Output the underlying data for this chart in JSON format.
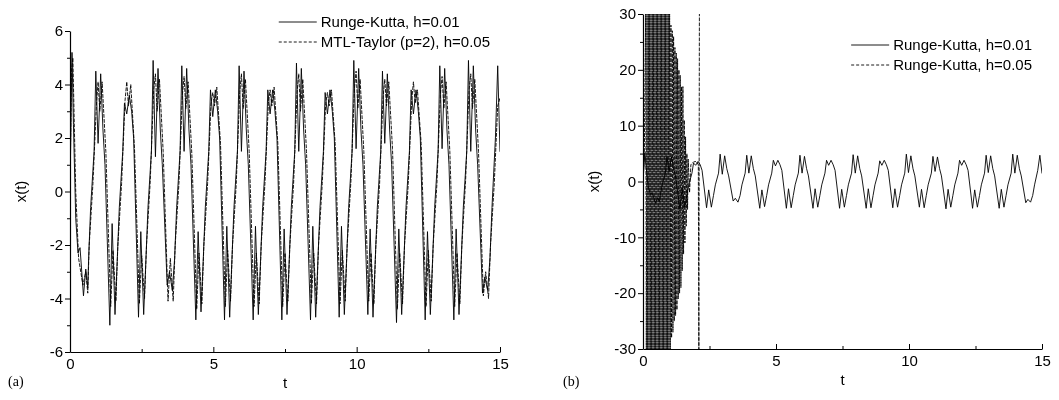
{
  "chart_data": [
    {
      "type": "line",
      "xlabel": "t",
      "ylabel": "x(t)",
      "annotations": [
        "(a)"
      ],
      "xlim": [
        0,
        15
      ],
      "ylim": [
        -6,
        6
      ],
      "xticks": [
        0,
        {
          "value": 2.5,
          "label": null
        },
        5,
        {
          "value": 7.5,
          "label": null
        },
        10,
        {
          "value": 12.5,
          "label": null
        },
        15
      ],
      "yticks": [
        -6,
        {
          "value": -5,
          "label": null
        },
        -4,
        {
          "value": -3,
          "label": null
        },
        -2,
        {
          "value": -1,
          "label": null
        },
        0,
        {
          "value": 1,
          "label": null
        },
        2,
        {
          "value": 3,
          "label": null
        },
        4,
        {
          "value": 5,
          "label": null
        },
        6
      ],
      "grid": false,
      "legend": "top right",
      "marker": "none",
      "series": [
        {
          "name": "Runge-Kutta, h=0.01",
          "color": "#000000",
          "line_style": "solid",
          "x": [
            0,
            0.04,
            0.07,
            0.12,
            0.2,
            0.28,
            0.35,
            0.47,
            0.55,
            0.62,
            0.65,
            0.72,
            0.84,
            0.9,
            0.98,
            1.07,
            1.15,
            1.22,
            1.39,
            1.47,
            1.57,
            1.65,
            1.72,
            1.84,
            1.9,
            1.98,
            2.07,
            2.15,
            2.22,
            2.39,
            2.47,
            2.57,
            2.65,
            2.72,
            2.84,
            2.9,
            2.98,
            3.07,
            3.15,
            3.22,
            3.39,
            3.47,
            3.57,
            3.65,
            3.72,
            3.84,
            3.9,
            3.98,
            4.07,
            4.15,
            4.22,
            4.39,
            4.47,
            4.57,
            4.65,
            4.72,
            4.84,
            4.9,
            4.98,
            5.07,
            5.15,
            5.22,
            5.39,
            5.47,
            5.57,
            5.65,
            5.72,
            5.84,
            5.9,
            5.98,
            6.07,
            6.15,
            6.22,
            6.39,
            6.47,
            6.57,
            6.65,
            6.72,
            6.84,
            6.9,
            6.98,
            7.07,
            7.15,
            7.22,
            7.39,
            7.47,
            7.57,
            7.65,
            7.72,
            7.84,
            7.9,
            7.98,
            8.07,
            8.15,
            8.22,
            8.39,
            8.47,
            8.57,
            8.65,
            8.72,
            8.84,
            8.9,
            8.98,
            9.07,
            9.15,
            9.22,
            9.39,
            9.47,
            9.57,
            9.65,
            9.72,
            9.84,
            9.9,
            9.98,
            10.07,
            10.15,
            10.22,
            10.39,
            10.47,
            10.57,
            10.65,
            10.72,
            10.84,
            10.9,
            10.98,
            11.07,
            11.15,
            11.22,
            11.39,
            11.47,
            11.57,
            11.65,
            11.72,
            11.84,
            11.9,
            11.98,
            12.07,
            12.15,
            12.22,
            12.39,
            12.47,
            12.57,
            12.65,
            12.72,
            12.84,
            12.9,
            12.98,
            13.07,
            13.15,
            13.22,
            13.39,
            13.47,
            13.57,
            13.65,
            13.72,
            13.84,
            13.9,
            13.98,
            14.07,
            14.15,
            14.22,
            14.39,
            14.47,
            14.57,
            14.65,
            14.72,
            14.84,
            14.92,
            15
          ],
          "values": [
            0,
            3,
            5.2,
            2.5,
            -1,
            -2.3,
            -2.1,
            -3.9,
            -2.9,
            -3.6,
            -2.5,
            -0.6,
            1.5,
            4.5,
            1.8,
            4.4,
            2.3,
            1,
            -5,
            -1.2,
            -4.6,
            -2.5,
            -0.6,
            1.5,
            3.3,
            2.9,
            3.6,
            3,
            2,
            -4.7,
            -1.5,
            -4.6,
            -2.5,
            -0.6,
            1.5,
            4.9,
            1.3,
            4.6,
            2.3,
            1,
            -3.5,
            -3,
            -3.7,
            -2.5,
            -0.6,
            1.5,
            4.7,
            1.5,
            4.6,
            2.3,
            1,
            -4.8,
            -1.5,
            -4.5,
            -2.5,
            -0.6,
            1.5,
            3.8,
            2.8,
            3.8,
            3,
            2,
            -4.8,
            -1.3,
            -4.7,
            -2.5,
            -0.6,
            1.5,
            4.7,
            1.5,
            4.5,
            2.3,
            1,
            -4.8,
            -1.3,
            -4.6,
            -2.5,
            -0.6,
            1.5,
            3.8,
            2.9,
            3.8,
            3,
            2,
            -4.8,
            -1.4,
            -4.6,
            -2.5,
            -0.6,
            1.5,
            4.8,
            1.5,
            4.6,
            2.3,
            1,
            -4.8,
            -1.3,
            -4.7,
            -2.5,
            -0.6,
            1.5,
            3.7,
            2.9,
            3.8,
            3,
            2,
            -4.7,
            -1.3,
            -4.6,
            -2.5,
            -0.6,
            1.5,
            4.9,
            1.6,
            4.6,
            2.3,
            1,
            -4.6,
            -1.4,
            -4.7,
            -2.5,
            -0.6,
            1.5,
            4.5,
            1.8,
            4.4,
            2.3,
            1,
            -4.9,
            -1.4,
            -4.6,
            -2.5,
            -0.6,
            1.5,
            3.8,
            2.9,
            3.8,
            3,
            2,
            -4.8,
            -1.5,
            -4.6,
            -2.5,
            -0.6,
            1.5,
            4.7,
            1.6,
            4.6,
            2.3,
            1,
            -4.8,
            -1.4,
            -4.6,
            -2.5,
            -0.6,
            1.5,
            4.9,
            1.5,
            4.7,
            2.3,
            1,
            -3.8,
            -3.2,
            -3.7,
            -2.5,
            -0.6,
            2,
            4.7,
            1.5
          ]
        },
        {
          "name": "MTL-Taylor (p=2), h=0.05",
          "color": "#000000",
          "line_style": "dashed",
          "x": [
            0,
            0.05,
            0.1,
            0.2,
            0.3,
            0.45,
            0.55,
            0.62,
            0.67,
            0.8,
            0.92,
            0.98,
            1.04,
            1.12,
            1.25,
            1.42,
            1.5,
            1.6,
            1.67,
            1.8,
            1.92,
            1.98,
            2.04,
            2.12,
            2.25,
            2.42,
            2.5,
            2.6,
            2.67,
            2.8,
            2.92,
            2.98,
            3.04,
            3.12,
            3.25,
            3.42,
            3.5,
            3.6,
            3.67,
            3.8,
            3.92,
            3.98,
            4.04,
            4.12,
            4.25,
            4.42,
            4.5,
            4.6,
            4.67,
            4.8,
            4.92,
            4.98,
            5.04,
            5.12,
            5.25,
            5.42,
            5.5,
            5.6,
            5.67,
            5.8,
            5.92,
            5.98,
            6.04,
            6.12,
            6.25,
            6.42,
            6.5,
            6.6,
            6.67,
            6.8,
            6.92,
            6.98,
            7.04,
            7.12,
            7.25,
            7.42,
            7.5,
            7.6,
            7.67,
            7.8,
            7.92,
            7.98,
            8.04,
            8.12,
            8.25,
            8.42,
            8.5,
            8.6,
            8.67,
            8.8,
            8.92,
            8.98,
            9.04,
            9.12,
            9.25,
            9.42,
            9.5,
            9.6,
            9.67,
            9.8,
            9.92,
            9.98,
            10.04,
            10.12,
            10.25,
            10.42,
            10.5,
            10.6,
            10.67,
            10.8,
            10.92,
            10.98,
            11.04,
            11.12,
            11.25,
            11.42,
            11.5,
            11.6,
            11.67,
            11.8,
            11.92,
            11.98,
            12.04,
            12.12,
            12.25,
            12.42,
            12.5,
            12.6,
            12.67,
            12.8,
            12.92,
            12.98,
            13.04,
            13.12,
            13.25,
            13.42,
            13.5,
            13.6,
            13.67,
            13.8,
            13.92,
            13.98,
            14.04,
            14.12,
            14.25,
            14.42,
            14.5,
            14.6,
            14.67,
            14.8,
            14.92,
            15
          ],
          "values": [
            0,
            4.5,
            5,
            0,
            -2.5,
            -3.5,
            -3,
            -3.8,
            -2,
            0.3,
            3.2,
            4.1,
            3,
            4.1,
            1.5,
            -4.3,
            -2.2,
            -4.1,
            -2,
            0.3,
            3.4,
            4.1,
            3.2,
            4,
            1.6,
            -4.2,
            -2.4,
            -4,
            -2,
            0.4,
            3.8,
            4.4,
            3,
            4.2,
            1.5,
            -4.1,
            -2.5,
            -4.1,
            -2,
            0.3,
            3.6,
            4.3,
            3.1,
            4.1,
            1.4,
            -4.4,
            -2.3,
            -4.2,
            -2,
            0.3,
            3.3,
            3.7,
            3.2,
            3.9,
            1.8,
            -4.3,
            -2.2,
            -4.1,
            -2,
            0.3,
            3.7,
            4.4,
            3.1,
            4.2,
            1.5,
            -4.3,
            -2.3,
            -4.2,
            -2,
            0.3,
            3.3,
            3.8,
            3.2,
            3.9,
            1.8,
            -4.3,
            -2.3,
            -4.1,
            -2,
            0.3,
            3.7,
            4.4,
            3,
            4.2,
            1.5,
            -4.2,
            -2.3,
            -4.2,
            -2,
            0.3,
            3.3,
            3.7,
            3.2,
            3.8,
            1.8,
            -4.2,
            -2.2,
            -4.1,
            -2,
            0.4,
            3.8,
            4.5,
            3.1,
            4.2,
            1.5,
            -4.1,
            -2.3,
            -4.2,
            -2,
            0.3,
            3.5,
            4.2,
            3.2,
            4.1,
            1.6,
            -4.4,
            -2.3,
            -4.2,
            -2,
            0.3,
            3.4,
            4.1,
            3.3,
            3.8,
            1.8,
            -4.3,
            -2.2,
            -4.1,
            -2,
            0.3,
            3.6,
            4.3,
            3.1,
            4.1,
            1.5,
            -4.3,
            -2.3,
            -4.2,
            -2,
            0.4,
            3.8,
            4.4,
            3.1,
            4.2,
            1.5,
            -3.9,
            -3,
            -4,
            -2,
            0.3,
            3.2,
            3.5
          ]
        }
      ]
    },
    {
      "type": "line",
      "xlabel": "t",
      "ylabel": "x(t)",
      "annotations": [
        "(b)"
      ],
      "xlim": [
        0,
        15
      ],
      "ylim": [
        -30,
        30
      ],
      "xticks": [
        0,
        {
          "value": 2.5,
          "label": null
        },
        5,
        {
          "value": 7.5,
          "label": null
        },
        10,
        {
          "value": 12.5,
          "label": null
        },
        15
      ],
      "yticks": [
        -30,
        {
          "value": -25,
          "label": null
        },
        -20,
        {
          "value": -15,
          "label": null
        },
        -10,
        {
          "value": -5,
          "label": null
        },
        0,
        {
          "value": 5,
          "label": null
        },
        10,
        {
          "value": 15,
          "label": null
        },
        20,
        {
          "value": 25,
          "label": null
        },
        30
      ],
      "grid": false,
      "legend": "top right",
      "marker": "none",
      "series": [
        {
          "name": "Runge-Kutta, h=0.01",
          "color": "#000000",
          "line_style": "solid",
          "x": [
            0,
            0.04,
            0.07,
            0.12,
            0.2,
            0.28,
            0.35,
            0.47,
            0.55,
            0.62,
            0.65,
            0.72,
            0.84,
            0.9,
            0.98,
            1.07,
            1.15,
            1.22,
            1.39,
            1.47,
            1.57,
            1.65,
            1.72,
            1.84,
            1.9,
            1.98,
            2.07,
            2.15,
            2.22,
            2.39,
            2.47,
            2.57,
            2.65,
            2.72,
            2.84,
            2.9,
            2.98,
            3.07,
            3.15,
            3.22,
            3.39,
            3.47,
            3.57,
            3.65,
            3.72,
            3.84,
            3.9,
            3.98,
            4.07,
            4.15,
            4.22,
            4.39,
            4.47,
            4.57,
            4.65,
            4.72,
            4.84,
            4.9,
            4.98,
            5.07,
            5.15,
            5.22,
            5.39,
            5.47,
            5.57,
            5.65,
            5.72,
            5.84,
            5.9,
            5.98,
            6.07,
            6.15,
            6.22,
            6.39,
            6.47,
            6.57,
            6.65,
            6.72,
            6.84,
            6.9,
            6.98,
            7.07,
            7.15,
            7.22,
            7.39,
            7.47,
            7.57,
            7.65,
            7.72,
            7.84,
            7.9,
            7.98,
            8.07,
            8.15,
            8.22,
            8.39,
            8.47,
            8.57,
            8.65,
            8.72,
            8.84,
            8.9,
            8.98,
            9.07,
            9.15,
            9.22,
            9.39,
            9.47,
            9.57,
            9.65,
            9.72,
            9.84,
            9.9,
            9.98,
            10.07,
            10.15,
            10.22,
            10.39,
            10.47,
            10.57,
            10.65,
            10.72,
            10.84,
            10.9,
            10.98,
            11.07,
            11.15,
            11.22,
            11.39,
            11.47,
            11.57,
            11.65,
            11.72,
            11.84,
            11.9,
            11.98,
            12.07,
            12.15,
            12.22,
            12.39,
            12.47,
            12.57,
            12.65,
            12.72,
            12.84,
            12.9,
            12.98,
            13.07,
            13.15,
            13.22,
            13.39,
            13.47,
            13.57,
            13.65,
            13.72,
            13.84,
            13.9,
            13.98,
            14.07,
            14.15,
            14.22,
            14.39,
            14.47,
            14.57,
            14.65,
            14.72,
            14.84,
            14.92,
            15
          ],
          "values": [
            0,
            3,
            5.2,
            2.5,
            -1,
            -2.3,
            -2.1,
            -3.9,
            -2.9,
            -3.6,
            -2.5,
            -0.6,
            1.5,
            4.5,
            1.8,
            4.4,
            2.3,
            1,
            -5,
            -1.2,
            -4.6,
            -2.5,
            -0.6,
            1.5,
            3.3,
            2.9,
            3.6,
            3,
            2,
            -4.7,
            -1.5,
            -4.6,
            -2.5,
            -0.6,
            1.5,
            4.9,
            1.3,
            4.6,
            2.3,
            1,
            -3.5,
            -3,
            -3.7,
            -2.5,
            -0.6,
            1.5,
            4.7,
            1.5,
            4.6,
            2.3,
            1,
            -4.8,
            -1.5,
            -4.5,
            -2.5,
            -0.6,
            1.5,
            3.8,
            2.8,
            3.8,
            3,
            2,
            -4.8,
            -1.3,
            -4.7,
            -2.5,
            -0.6,
            1.5,
            4.7,
            1.5,
            4.5,
            2.3,
            1,
            -4.8,
            -1.3,
            -4.6,
            -2.5,
            -0.6,
            1.5,
            3.8,
            2.9,
            3.8,
            3,
            2,
            -4.8,
            -1.4,
            -4.6,
            -2.5,
            -0.6,
            1.5,
            4.8,
            1.5,
            4.6,
            2.3,
            1,
            -4.8,
            -1.3,
            -4.7,
            -2.5,
            -0.6,
            1.5,
            3.7,
            2.9,
            3.8,
            3,
            2,
            -4.7,
            -1.3,
            -4.6,
            -2.5,
            -0.6,
            1.5,
            4.9,
            1.6,
            4.6,
            2.3,
            1,
            -4.6,
            -1.4,
            -4.7,
            -2.5,
            -0.6,
            1.5,
            4.5,
            1.8,
            4.4,
            2.3,
            1,
            -4.9,
            -1.4,
            -4.6,
            -2.5,
            -0.6,
            1.5,
            3.8,
            2.9,
            3.8,
            3,
            2,
            -4.8,
            -1.5,
            -4.6,
            -2.5,
            -0.6,
            1.5,
            4.7,
            1.6,
            4.6,
            2.3,
            1,
            -4.8,
            -1.4,
            -4.6,
            -2.5,
            -0.6,
            1.5,
            4.9,
            1.5,
            4.7,
            2.3,
            1,
            -3.8,
            -3.2,
            -3.7,
            -2.5,
            -0.6,
            2,
            4.7,
            1.5
          ]
        },
        {
          "name": "Runge-Kutta, h=0.05",
          "color": "#000000",
          "line_style": "dashed",
          "x": [
            0,
            0.05,
            0.1,
            0.125,
            0.15,
            0.175,
            0.2,
            0.225,
            0.25,
            0.275,
            0.3,
            0.325,
            0.35,
            0.375,
            0.4,
            0.425,
            0.45,
            0.475,
            0.5,
            0.525,
            0.55,
            0.575,
            0.6,
            0.625,
            0.65,
            0.675,
            0.7,
            0.725,
            0.75,
            0.775,
            0.8,
            0.825,
            0.85,
            0.875,
            0.9,
            0.925,
            0.95,
            0.975,
            1,
            1.025,
            1.05,
            1.075,
            1.1,
            1.125,
            1.15,
            1.175,
            1.2,
            1.225,
            1.25,
            1.275,
            1.3,
            1.325,
            1.35,
            1.375,
            1.4,
            1.425,
            1.45,
            1.475,
            1.5,
            1.525,
            1.55,
            1.575,
            1.6,
            1.625,
            1.65,
            1.675,
            1.7,
            1.75,
            1.8,
            1.9,
            2,
            2.08,
            2.1,
            2.12
          ],
          "values": [
            0,
            5,
            30,
            -30,
            30,
            -30,
            30,
            -30,
            30,
            -30,
            30,
            -30,
            30,
            -30,
            30,
            -30,
            30,
            -30,
            30,
            -30,
            30,
            -30,
            30,
            -30,
            30,
            -30,
            30,
            -30,
            30,
            -30,
            30,
            -30,
            30,
            -30,
            30,
            -30,
            30,
            -30,
            30,
            -30,
            28,
            -28,
            27,
            -27,
            26,
            -25,
            24,
            -24,
            23,
            -23,
            22,
            -21,
            20,
            -20,
            19,
            -19,
            17,
            -16,
            17,
            -13,
            11,
            -11,
            8,
            -8,
            5,
            -5,
            4,
            -2,
            3,
            3.5,
            3.6,
            3,
            -30,
            30
          ]
        }
      ]
    }
  ]
}
